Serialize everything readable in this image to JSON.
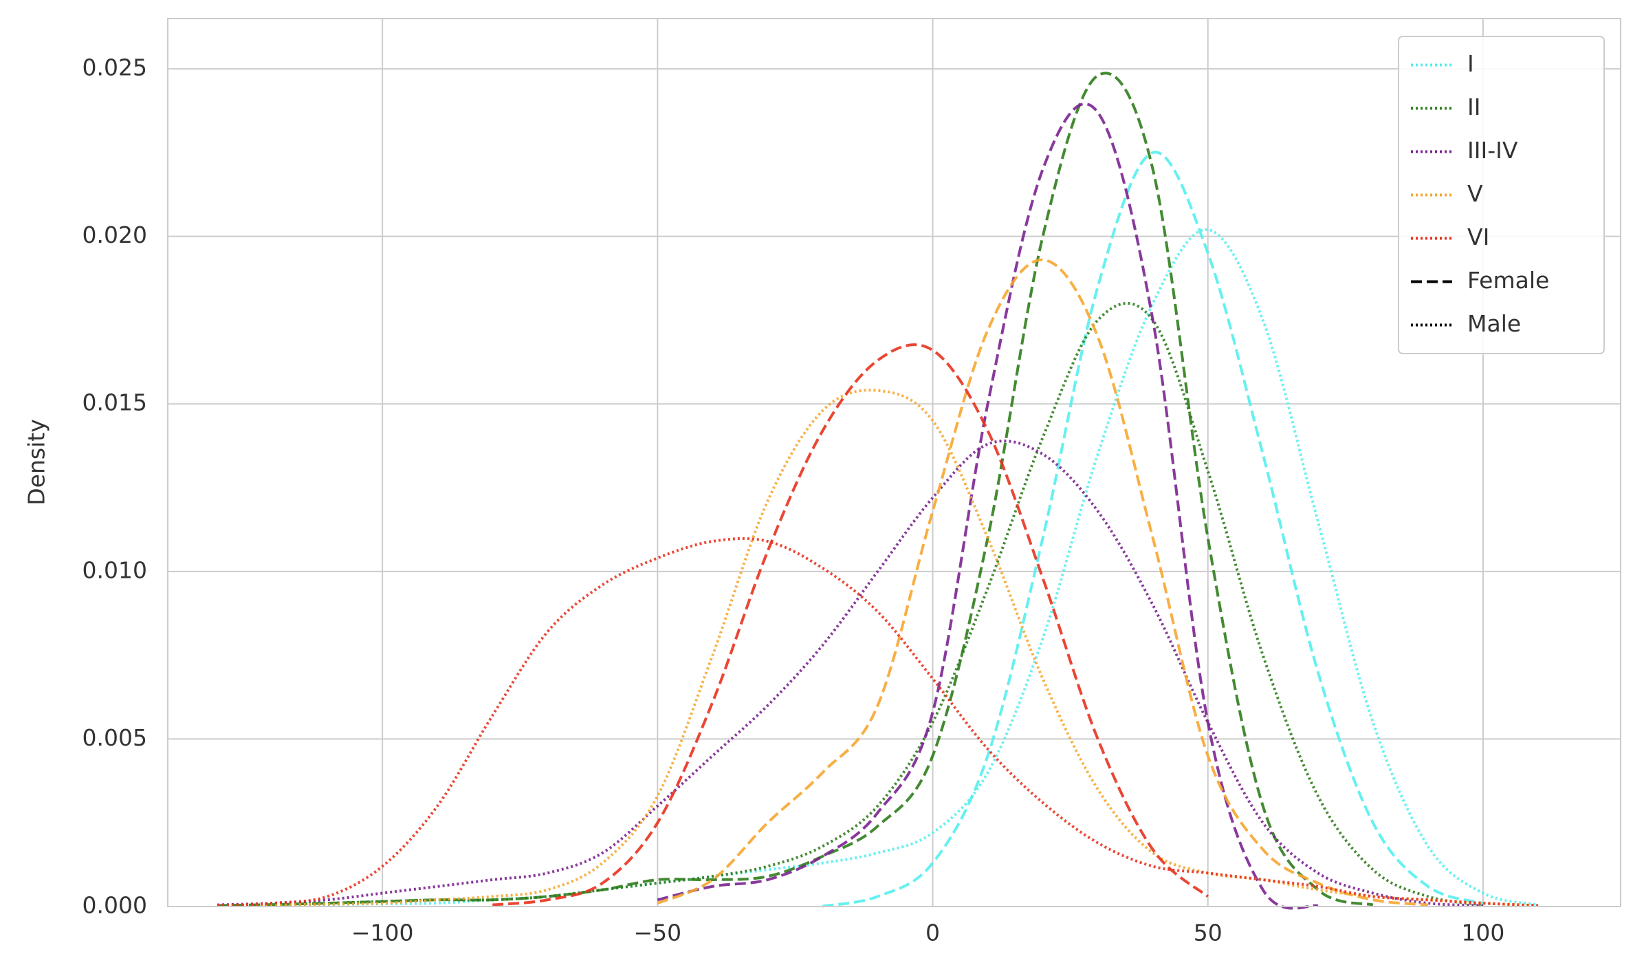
{
  "chart_data": {
    "type": "line",
    "y_label": "Density",
    "x": [
      -130,
      -120,
      -110,
      -100,
      -90,
      -80,
      -70,
      -60,
      -50,
      -40,
      -30,
      -20,
      -10,
      0,
      10,
      20,
      30,
      40,
      50,
      60,
      70,
      80,
      90,
      100,
      110
    ],
    "xlim": [
      -139,
      125
    ],
    "ylim": [
      0,
      0.0265
    ],
    "xticks": [
      {
        "value": -100,
        "label": "−100"
      },
      {
        "value": -50,
        "label": "−50"
      },
      0,
      50,
      100
    ],
    "yticks": [
      {
        "value": 0,
        "label": "0.000"
      },
      {
        "value": 0.005,
        "label": "0.005"
      },
      {
        "value": 0.01,
        "label": "0.010"
      },
      {
        "value": 0.015,
        "label": "0.015"
      },
      {
        "value": 0.02,
        "label": "0.020"
      },
      {
        "value": 0.025,
        "label": "0.025"
      }
    ],
    "grid": true,
    "legend": "upper right",
    "styles": [
      {
        "name": "Female",
        "dash": "16,7"
      },
      {
        "name": "Male",
        "dash": "3,4"
      }
    ],
    "series": [
      {
        "name": "I",
        "color": "#55eeee",
        "female": [
          null,
          null,
          null,
          null,
          null,
          null,
          null,
          null,
          null,
          null,
          null,
          1e-05,
          0.0003,
          0.0013,
          0.0045,
          0.011,
          0.0185,
          0.0225,
          0.0195,
          0.0135,
          0.007,
          0.0025,
          0.0006,
          0.0001,
          null
        ],
        "male": [
          2e-05,
          4e-05,
          6e-05,
          8e-05,
          0.0001,
          0.0002,
          0.0003,
          0.0005,
          0.0007,
          0.0009,
          0.0011,
          0.0013,
          0.0016,
          0.0022,
          0.004,
          0.008,
          0.0135,
          0.018,
          0.0202,
          0.0175,
          0.0115,
          0.0055,
          0.0018,
          0.0004,
          5e-05
        ]
      },
      {
        "name": "II",
        "color": "#2f7d1c",
        "female": [
          3e-05,
          6e-05,
          0.0001,
          0.00015,
          0.0002,
          0.0002,
          0.0003,
          0.0005,
          0.0008,
          0.0008,
          0.0009,
          0.0015,
          0.0024,
          0.0045,
          0.011,
          0.02,
          0.0248,
          0.022,
          0.011,
          0.003,
          0.0005,
          5e-05,
          null,
          null,
          null
        ],
        "male": [
          3e-05,
          6e-05,
          0.0001,
          0.00015,
          0.0002,
          0.0002,
          0.0003,
          0.0005,
          0.0007,
          0.0009,
          0.0012,
          0.0018,
          0.003,
          0.0055,
          0.0095,
          0.014,
          0.0175,
          0.0175,
          0.013,
          0.0075,
          0.0033,
          0.0011,
          0.0003,
          5e-05,
          null
        ]
      },
      {
        "name": "III-IV",
        "color": "#7b2390",
        "female": [
          null,
          null,
          null,
          null,
          null,
          null,
          null,
          null,
          0.0002,
          0.0006,
          0.0008,
          0.0015,
          0.0028,
          0.0058,
          0.015,
          0.022,
          0.0237,
          0.0175,
          0.0055,
          0.0005,
          2e-05,
          null,
          null,
          null,
          null
        ],
        "male": [
          5e-05,
          0.0001,
          0.0002,
          0.0004,
          0.0006,
          0.0008,
          0.001,
          0.0016,
          0.003,
          0.0045,
          0.006,
          0.0078,
          0.01,
          0.0122,
          0.0138,
          0.0135,
          0.0118,
          0.009,
          0.0055,
          0.0025,
          0.001,
          0.0004,
          0.0001,
          3e-05,
          null
        ]
      },
      {
        "name": "V",
        "color": "#f6a630",
        "female": [
          null,
          null,
          null,
          null,
          null,
          null,
          null,
          null,
          0.0001,
          0.0008,
          0.0025,
          0.004,
          0.006,
          0.0118,
          0.0172,
          0.0193,
          0.017,
          0.011,
          0.0045,
          0.0017,
          0.0007,
          0.0002,
          5e-05,
          null,
          null
        ],
        "male": [
          3e-05,
          5e-05,
          7e-05,
          0.0001,
          0.0002,
          0.0003,
          0.0005,
          0.0013,
          0.0033,
          0.0075,
          0.0121,
          0.0148,
          0.0154,
          0.0145,
          0.011,
          0.0068,
          0.0035,
          0.0016,
          0.001,
          0.0008,
          0.0005,
          0.0003,
          0.0002,
          0.0001,
          3e-05
        ]
      },
      {
        "name": "VI",
        "color": "#e8321e",
        "female": [
          null,
          null,
          null,
          null,
          null,
          5e-05,
          0.0002,
          0.0007,
          0.0025,
          0.0061,
          0.0106,
          0.0142,
          0.0163,
          0.0166,
          0.0142,
          0.0098,
          0.005,
          0.0017,
          0.0003,
          null,
          null,
          null,
          null,
          null,
          null
        ],
        "male": [
          3e-05,
          0.0001,
          0.0003,
          0.0012,
          0.003,
          0.0057,
          0.0082,
          0.0096,
          0.0104,
          0.0109,
          0.0109,
          0.0101,
          0.0088,
          0.0068,
          0.0047,
          0.0031,
          0.0019,
          0.0012,
          0.001,
          0.0008,
          0.0006,
          0.0003,
          0.0002,
          0.0001,
          3e-05
        ]
      }
    ]
  }
}
